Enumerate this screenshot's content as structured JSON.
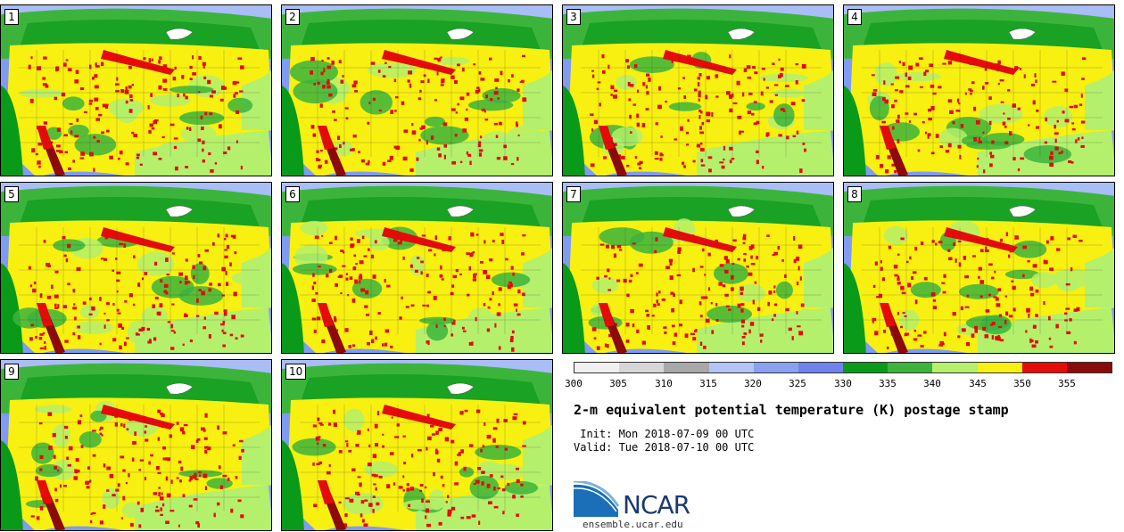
{
  "panels": [
    {
      "label": "1"
    },
    {
      "label": "2"
    },
    {
      "label": "3"
    },
    {
      "label": "4"
    },
    {
      "label": "5"
    },
    {
      "label": "6"
    },
    {
      "label": "7"
    },
    {
      "label": "8"
    },
    {
      "label": "9"
    },
    {
      "label": "10"
    }
  ],
  "colorbar": {
    "colors": [
      "#f0f0f0",
      "#d6d6d6",
      "#a8a8a8",
      "#b4c4f8",
      "#8aa0f0",
      "#6e84ec",
      "#0a9a1a",
      "#3cb43c",
      "#b4f06c",
      "#f8f010",
      "#e60a0a",
      "#8c0a0a"
    ],
    "ticks": [
      "300",
      "305",
      "310",
      "315",
      "320",
      "325",
      "330",
      "335",
      "340",
      "345",
      "350",
      "355"
    ]
  },
  "title": "2-m equivalent potential temperature (K) postage stamp",
  "init": " Init: Mon 2018-07-09 00 UTC",
  "valid": "Valid: Tue 2018-07-10 00 UTC",
  "logo": {
    "text": "NCAR",
    "url": "ensemble.ucar.edu"
  }
}
